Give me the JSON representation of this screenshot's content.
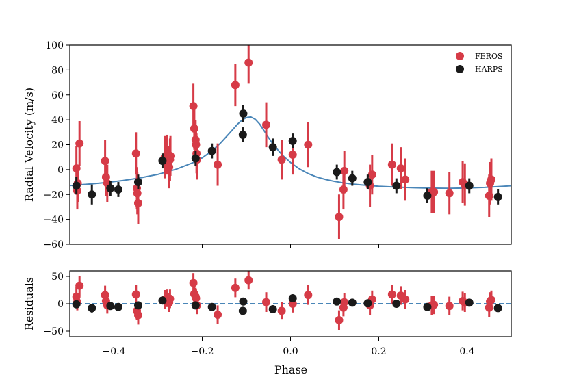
{
  "chart_data": {
    "type": "scatter",
    "xlabel": "Phase",
    "xlim": [
      -0.5,
      0.5
    ],
    "xticks": [
      -0.4,
      -0.2,
      0.0,
      0.2,
      0.4
    ],
    "xtick_labels": [
      "−0.4",
      "−0.2",
      "0.0",
      "0.2",
      "0.4"
    ],
    "legend": {
      "position": "top-right",
      "entries": [
        {
          "name": "FEROS",
          "color": "#d63b47"
        },
        {
          "name": "HARPS",
          "color": "#1a1a1a"
        }
      ]
    },
    "panels": [
      {
        "name": "rv",
        "ylabel": "Radial Velocity (m/s)",
        "ylim": [
          -60,
          100
        ],
        "yticks": [
          -60,
          -40,
          -20,
          0,
          20,
          40,
          60,
          80,
          100
        ],
        "ytick_labels": [
          "−60",
          "−40",
          "−20",
          "0",
          "20",
          "40",
          "60",
          "80",
          "100"
        ],
        "model_color": "#4a86b8",
        "model": {
          "x": [
            -0.5,
            -0.46,
            -0.42,
            -0.38,
            -0.34,
            -0.3,
            -0.26,
            -0.22,
            -0.2,
            -0.18,
            -0.16,
            -0.14,
            -0.12,
            -0.11,
            -0.1,
            -0.09,
            -0.08,
            -0.07,
            -0.06,
            -0.05,
            -0.04,
            -0.02,
            0.0,
            0.02,
            0.04,
            0.06,
            0.08,
            0.1,
            0.12,
            0.14,
            0.16,
            0.2,
            0.24,
            0.28,
            0.32,
            0.36,
            0.4,
            0.44,
            0.48,
            0.5
          ],
          "y": [
            -12.8,
            -11.8,
            -10.5,
            -8.8,
            -6.6,
            -3.8,
            0.2,
            5.7,
            9.5,
            14.5,
            20.8,
            28.6,
            36.5,
            39.8,
            41.9,
            42.3,
            40.5,
            36.6,
            31.3,
            25.8,
            20.6,
            12.2,
            5.7,
            0.6,
            -3.2,
            -6.0,
            -8.0,
            -9.5,
            -10.7,
            -11.6,
            -12.3,
            -13.4,
            -14.1,
            -14.6,
            -14.9,
            -15.0,
            -14.8,
            -14.3,
            -13.5,
            -13.0
          ]
        },
        "series": [
          {
            "name": "FEROS",
            "color": "#d63b47",
            "x": [
              -0.485,
              -0.483,
              -0.482,
              -0.478,
              -0.42,
              -0.418,
              -0.415,
              -0.35,
              -0.348,
              -0.347,
              -0.345,
              -0.285,
              -0.28,
              -0.275,
              -0.273,
              -0.272,
              -0.22,
              -0.218,
              -0.215,
              -0.214,
              -0.213,
              -0.212,
              -0.165,
              -0.125,
              -0.095,
              -0.055,
              -0.02,
              0.005,
              0.04,
              0.11,
              0.12,
              0.122,
              0.18,
              0.185,
              0.23,
              0.25,
              0.26,
              0.32,
              0.325,
              0.36,
              0.39,
              0.395,
              0.45,
              0.452,
              0.455
            ],
            "y": [
              1,
              -17,
              -11,
              21,
              7,
              -6,
              -11,
              13,
              -15,
              -19,
              -27,
              10,
              12,
              2,
              8,
              11,
              51,
              33,
              24,
              20,
              13,
              8,
              4,
              68,
              86,
              36,
              8,
              12,
              20,
              -38,
              -16,
              -1,
              -13,
              -4,
              4,
              1,
              -8,
              -18,
              -18,
              -19,
              -10,
              -12,
              -21,
              -11,
              -8
            ],
            "err": [
              18,
              15,
              15,
              18,
              17,
              15,
              15,
              17,
              17,
              17,
              17,
              17,
              16,
              17,
              17,
              16,
              18,
              17,
              16,
              16,
              16,
              16,
              17,
              17,
              17,
              18,
              16,
              16,
              18,
              18,
              16,
              16,
              17,
              16,
              17,
              17,
              17,
              17,
              17,
              17,
              17,
              17,
              17,
              17,
              17
            ]
          },
          {
            "name": "HARPS",
            "color": "#1a1a1a",
            "x": [
              -0.485,
              -0.45,
              -0.408,
              -0.39,
              -0.345,
              -0.29,
              -0.215,
              -0.178,
              -0.107,
              -0.108,
              -0.04,
              0.005,
              0.105,
              0.14,
              0.175,
              0.24,
              0.31,
              0.405,
              0.47
            ],
            "y": [
              -13,
              -20,
              -15,
              -16,
              -10,
              7,
              9,
              15,
              45,
              28,
              18,
              23,
              -2,
              -7,
              -10,
              -13,
              -21,
              -13,
              -22
            ],
            "err": [
              7,
              8,
              6,
              6,
              6,
              6,
              6,
              6,
              7,
              6,
              7,
              6,
              6,
              6,
              6,
              6,
              6,
              6,
              6
            ]
          }
        ]
      },
      {
        "name": "residuals",
        "ylabel": "Residuals",
        "ylim": [
          -60,
          60
        ],
        "yticks": [
          -50,
          0,
          50
        ],
        "ytick_labels": [
          "−50",
          "0",
          "50"
        ],
        "zero_line_color": "#4a86b8",
        "series": [
          {
            "name": "FEROS",
            "color": "#d63b47",
            "x": [
              -0.485,
              -0.483,
              -0.478,
              -0.42,
              -0.418,
              -0.415,
              -0.35,
              -0.348,
              -0.345,
              -0.285,
              -0.28,
              -0.275,
              -0.273,
              -0.22,
              -0.218,
              -0.215,
              -0.214,
              -0.212,
              -0.165,
              -0.125,
              -0.095,
              -0.055,
              -0.02,
              0.005,
              0.04,
              0.11,
              0.12,
              0.122,
              0.18,
              0.185,
              0.23,
              0.25,
              0.26,
              0.32,
              0.325,
              0.36,
              0.39,
              0.395,
              0.45,
              0.452,
              0.455
            ],
            "y": [
              13,
              3,
              33,
              16,
              5,
              -3,
              17,
              -13,
              -21,
              8,
              10,
              2,
              9,
              38,
              18,
              13,
              10,
              -3,
              -20,
              29,
              43,
              3,
              -13,
              0,
              16,
              -30,
              -7,
              3,
              -3,
              8,
              17,
              15,
              8,
              -3,
              -2,
              -4,
              5,
              2,
              -7,
              4,
              7
            ],
            "err": [
              18,
              15,
              18,
              17,
              15,
              15,
              17,
              17,
              17,
              17,
              16,
              17,
              17,
              18,
              17,
              16,
              16,
              16,
              17,
              17,
              17,
              18,
              16,
              16,
              18,
              18,
              16,
              16,
              17,
              16,
              17,
              17,
              17,
              17,
              17,
              17,
              17,
              17,
              17,
              17,
              17
            ]
          },
          {
            "name": "HARPS",
            "color": "#1a1a1a",
            "x": [
              -0.485,
              -0.45,
              -0.408,
              -0.39,
              -0.345,
              -0.29,
              -0.215,
              -0.178,
              -0.107,
              -0.108,
              -0.04,
              0.005,
              0.105,
              0.14,
              0.175,
              0.24,
              0.31,
              0.405,
              0.47
            ],
            "y": [
              -1,
              -8,
              -4,
              -6,
              -3,
              6,
              -3,
              -6,
              4,
              -13,
              -10,
              10,
              4,
              2,
              1,
              0,
              -6,
              2,
              -8
            ],
            "err": [
              7,
              8,
              6,
              6,
              6,
              6,
              6,
              6,
              7,
              6,
              7,
              6,
              6,
              6,
              6,
              6,
              6,
              6,
              6
            ]
          }
        ]
      }
    ]
  }
}
